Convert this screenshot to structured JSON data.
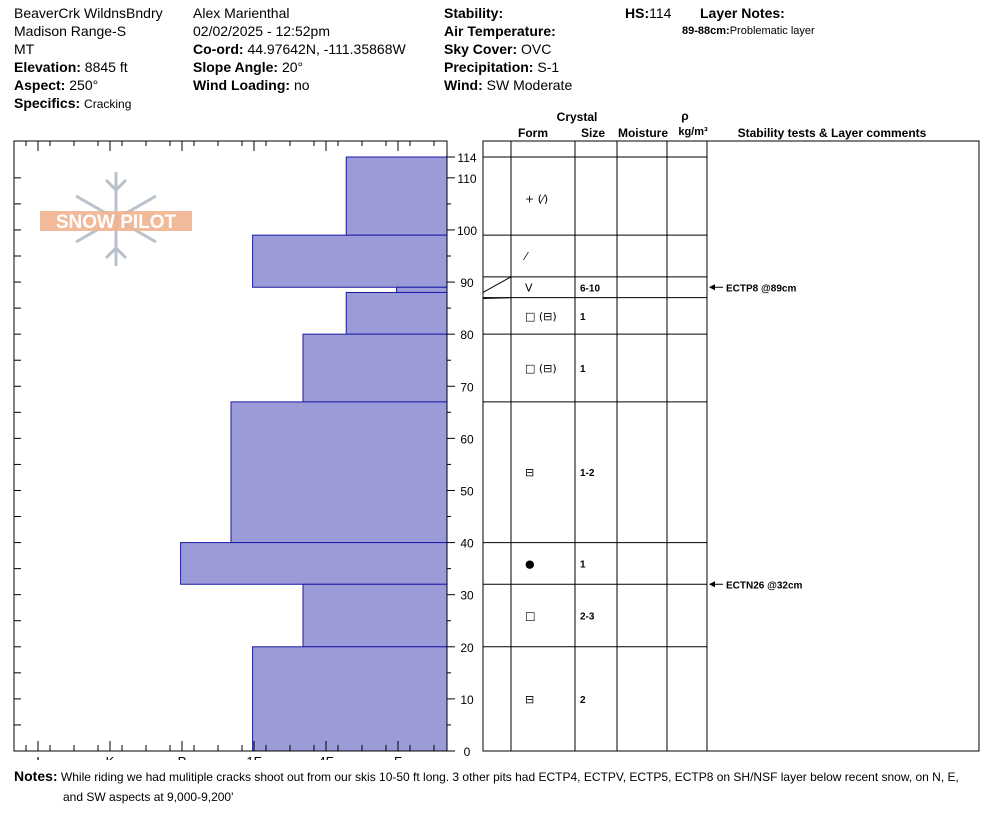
{
  "header": {
    "location": "BeaverCrk WildnsBndry",
    "range": "Madison Range-S",
    "state": "MT",
    "elevation_label": "Elevation:",
    "elevation": "8845 ft",
    "aspect_label": "Aspect:",
    "aspect": "250°",
    "specifics_label": "Specifics:",
    "specifics": "Cracking",
    "observer": "Alex Marienthal",
    "datetime": "02/02/2025 - 12:52pm",
    "coord_label": "Co-ord:",
    "coord": "44.97642N, -111.35868W",
    "slope_label": "Slope Angle:",
    "slope": "20°",
    "wind_loading_label": "Wind Loading:",
    "wind_loading": "no",
    "stability_label": "Stability:",
    "air_temp_label": "Air Temperature:",
    "sky_label": "Sky Cover:",
    "sky": "OVC",
    "precip_label": "Precipitation:",
    "precip": "S-1",
    "wind_label": "Wind:",
    "wind": "SW Moderate",
    "hs_label": "HS:",
    "hs": "114",
    "layer_notes_label": "Layer Notes:",
    "layer_note_depth": "89-88cm:",
    "layer_note_text": "Problematic layer"
  },
  "columns": {
    "crystal": "Crystal",
    "form": "Form",
    "size": "Size",
    "moisture": "Moisture",
    "rho": "ρ",
    "density_unit": "kg/m³",
    "stability_comments": "Stability tests & Layer comments"
  },
  "logo_text": "SNOW PILOT",
  "chart_data": {
    "type": "bar",
    "orientation": "horizontal",
    "x_tick_labels": [
      "I",
      "K",
      "P",
      "1F",
      "4F",
      "F"
    ],
    "y_tick_labels": [
      "0",
      "10",
      "20",
      "30",
      "40",
      "50",
      "60",
      "70",
      "80",
      "90",
      "100",
      "110",
      "114"
    ],
    "ylim": [
      0,
      114
    ],
    "y_unit": "cm",
    "hardness_scale_note": "hardness values in hand-hardness steps: F=1, 4F=2, 1F=3, P=4, K=5, I=6 (bars extend leftward from the right edge)",
    "hardness_layers": [
      {
        "top": 114,
        "bottom": 99,
        "hardness": 1.4
      },
      {
        "top": 99,
        "bottom": 89,
        "hardness": 2.7
      },
      {
        "top": 89,
        "bottom": 88,
        "hardness": 0.7
      },
      {
        "top": 88,
        "bottom": 80,
        "hardness": 1.4
      },
      {
        "top": 80,
        "bottom": 67,
        "hardness": 2.0
      },
      {
        "top": 67,
        "bottom": 40,
        "hardness": 3.0
      },
      {
        "top": 40,
        "bottom": 32,
        "hardness": 3.7
      },
      {
        "top": 32,
        "bottom": 20,
        "hardness": 2.0
      },
      {
        "top": 20,
        "bottom": 0,
        "hardness": 2.7
      }
    ],
    "layer_boundaries": [
      114,
      99,
      91,
      87,
      80,
      67,
      40,
      32,
      20
    ],
    "layers": [
      {
        "mid": 106,
        "form": "+ (⁄)",
        "size": ""
      },
      {
        "mid": 95,
        "form": "⁄",
        "size": ""
      },
      {
        "mid": 89,
        "form": "V",
        "size": "6-10"
      },
      {
        "mid": 83.5,
        "form": "□ (⊟)",
        "size": "1"
      },
      {
        "mid": 73.5,
        "form": "□ (⊟)",
        "size": "1"
      },
      {
        "mid": 53.5,
        "form": "⊟",
        "size": "1-2"
      },
      {
        "mid": 36,
        "form": "●",
        "size": "1"
      },
      {
        "mid": 26,
        "form": "□",
        "size": "2-3"
      },
      {
        "mid": 10,
        "form": "⊟",
        "size": "2"
      }
    ],
    "stability_tests": [
      {
        "depth": 89,
        "label": "ECTP8 @89cm"
      },
      {
        "depth": 32,
        "label": "ECTN26 @32cm"
      }
    ],
    "colors": {
      "bar_fill": "#9b9bd7",
      "bar_stroke": "#1a1aa6"
    }
  },
  "notes": {
    "label": "Notes:",
    "text1": "While riding we had mulitiple cracks shoot out from our skis 10-50 ft long. 3 other pits had ECTP4, ECTPV, ECTP5, ECTP8 on SH/NSF layer below recent snow, on N, E,",
    "text2": "and SW aspects at 9,000-9,200'"
  }
}
